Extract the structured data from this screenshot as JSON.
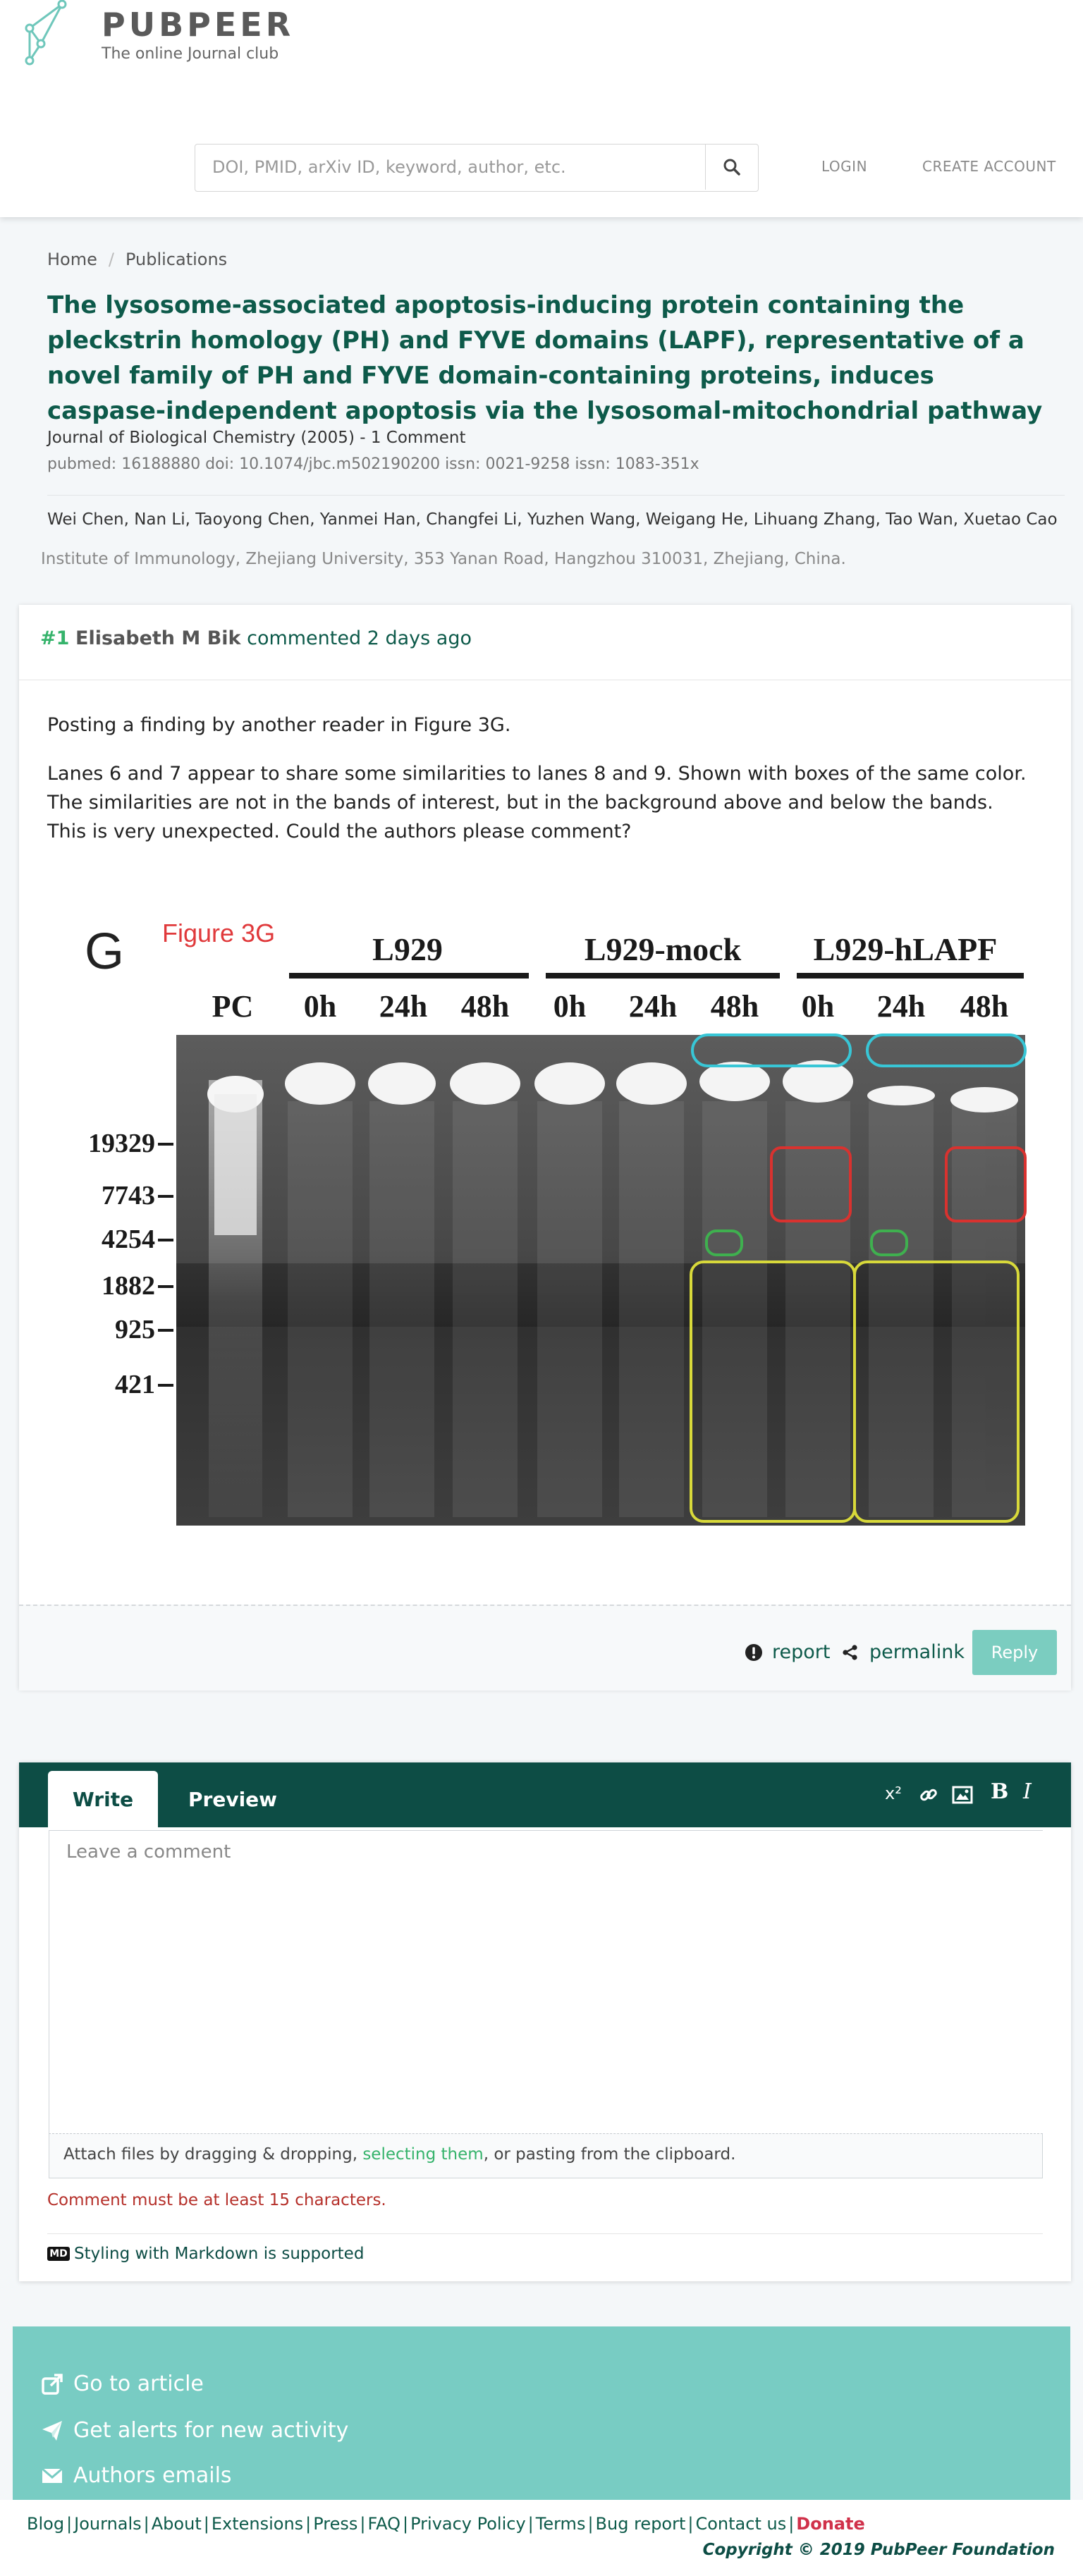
{
  "brand": {
    "name": "PUBPEER",
    "tagline": "The online Journal club"
  },
  "search": {
    "placeholder": "DOI, PMID, arXiv ID, keyword, author, etc."
  },
  "nav": {
    "login": "LOGIN",
    "create_account": "CREATE ACCOUNT"
  },
  "breadcrumb": [
    "Home",
    "Publications"
  ],
  "publication": {
    "title": "The lysosome-associated apoptosis-inducing protein containing the pleckstrin homology (PH) and FYVE domains (LAPF), representative of a novel family of PH and FYVE domain-containing proteins, induces caspase-independent apoptosis via the lysosomal-mitochondrial pathway",
    "journal_line": "Journal of Biological Chemistry (2005) - 1 Comment",
    "ids_line": "pubmed: 16188880  doi: 10.1074/jbc.m502190200  issn: 0021-9258  issn: 1083-351x",
    "authors": "Wei Chen, Nan Li, Taoyong Chen, Yanmei Han, Changfei Li, Yuzhen Wang, Weigang He, Lihuang Zhang, Tao Wan, Xuetao Cao",
    "affiliation": "Institute of Immunology, Zhejiang University, 353 Yanan Road, Hangzhou 310031, Zhejiang, China."
  },
  "comment": {
    "number": "#1",
    "author": "Elisabeth M Bik",
    "action": "commented",
    "time": "2 days ago",
    "paragraph1": "Posting a finding by another reader in Figure 3G.",
    "paragraph2": "Lanes 6 and 7 appear to share some similarities to lanes 8 and 9. Shown with boxes of the same color. The similarities are not in the bands of interest, but in the background above and below the bands. This is very unexpected. Could the authors please comment?",
    "figure": {
      "panel_letter": "G",
      "figure_label": "Figure 3G",
      "groups": [
        "L929",
        "L929-mock",
        "L929-hLAPF"
      ],
      "lanes": [
        "PC",
        "0h",
        "24h",
        "48h",
        "0h",
        "24h",
        "48h",
        "0h",
        "24h",
        "48h"
      ],
      "markers": [
        "19329",
        "7743",
        "4254",
        "1882",
        "925",
        "421"
      ],
      "box_colors": {
        "cyan": "#38c6d6",
        "red": "#d9322f",
        "green": "#3fb04f",
        "yellow": "#d8d93a"
      }
    },
    "report_label": "report",
    "permalink_label": "permalink",
    "reply_label": "Reply"
  },
  "editor": {
    "tab_write": "Write",
    "tab_preview": "Preview",
    "toolbar": {
      "superscript": "x²",
      "bold": "B",
      "italic": "I"
    },
    "placeholder": "Leave a comment",
    "attach_before": "Attach files by dragging & dropping, ",
    "attach_link": "selecting them",
    "attach_after": ", or pasting from the clipboard.",
    "error": "Comment must be at least 15 characters.",
    "markdown_badge": "MD",
    "markdown_note": "Styling with Markdown is supported"
  },
  "links_panel": {
    "go_to_article": "Go to article",
    "alerts": "Get alerts for new activity",
    "authors_emails": "Authors emails"
  },
  "footer": {
    "links": [
      "Blog",
      "Journals",
      "About",
      "Extensions",
      "Press",
      "FAQ",
      "Privacy Policy",
      "Terms",
      "Bug report",
      "Contact us"
    ],
    "donate": "Donate",
    "copyright": "Copyright © 2019 PubPeer Foundation"
  },
  "colors": {
    "accent": "#0d5a4a",
    "editor_bar": "#0d4d45",
    "panel": "#78ccc3",
    "number_green": "#35b36b",
    "donate": "#d0314a"
  }
}
